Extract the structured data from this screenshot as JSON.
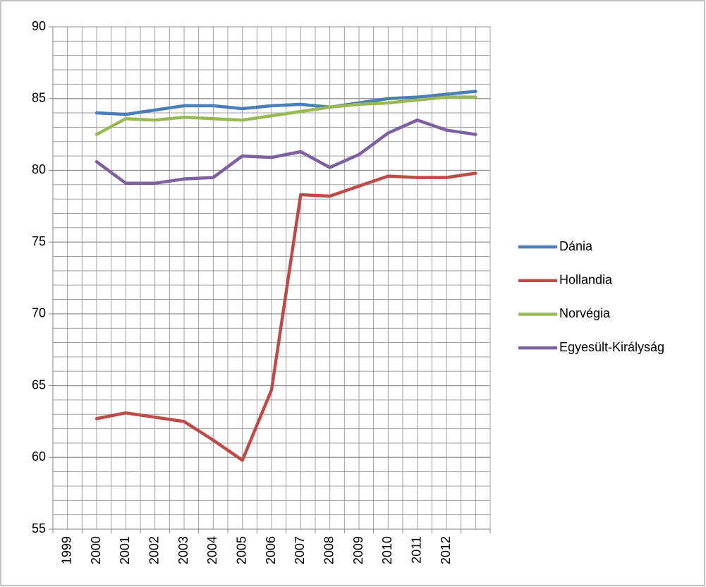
{
  "chart_data": {
    "type": "line",
    "categories": [
      "1999",
      "2000",
      "2001",
      "2002",
      "2003",
      "2004",
      "2005",
      "2006",
      "2007",
      "2008",
      "2009",
      "2010",
      "2011",
      "2012",
      null
    ],
    "series": [
      {
        "name": "Dánia",
        "color": "#4a7ebb",
        "values": [
          null,
          84.0,
          83.9,
          84.2,
          84.5,
          84.5,
          84.3,
          84.5,
          84.6,
          84.4,
          84.7,
          85.0,
          85.1,
          85.3,
          85.5
        ]
      },
      {
        "name": "Hollandia",
        "color": "#be4b48",
        "values": [
          null,
          62.7,
          63.1,
          62.8,
          62.5,
          61.2,
          59.8,
          64.7,
          78.3,
          78.2,
          78.9,
          79.6,
          79.5,
          79.5,
          79.8
        ]
      },
      {
        "name": "Norvégia",
        "color": "#98b954",
        "values": [
          null,
          82.5,
          83.6,
          83.5,
          83.7,
          83.6,
          83.5,
          83.8,
          84.1,
          84.4,
          84.6,
          84.7,
          84.9,
          85.1,
          85.1
        ]
      },
      {
        "name": "Egyesült-Királyság",
        "color": "#7d60a0",
        "values": [
          null,
          80.6,
          79.1,
          79.1,
          79.4,
          79.5,
          81.0,
          80.9,
          81.3,
          80.2,
          81.1,
          82.6,
          83.5,
          82.8,
          82.5
        ]
      }
    ],
    "ylim": [
      55,
      90
    ],
    "yticks": [
      55,
      60,
      65,
      70,
      75,
      80,
      85,
      90
    ],
    "y_minor_step": 1,
    "grid": true,
    "legend": "right"
  }
}
